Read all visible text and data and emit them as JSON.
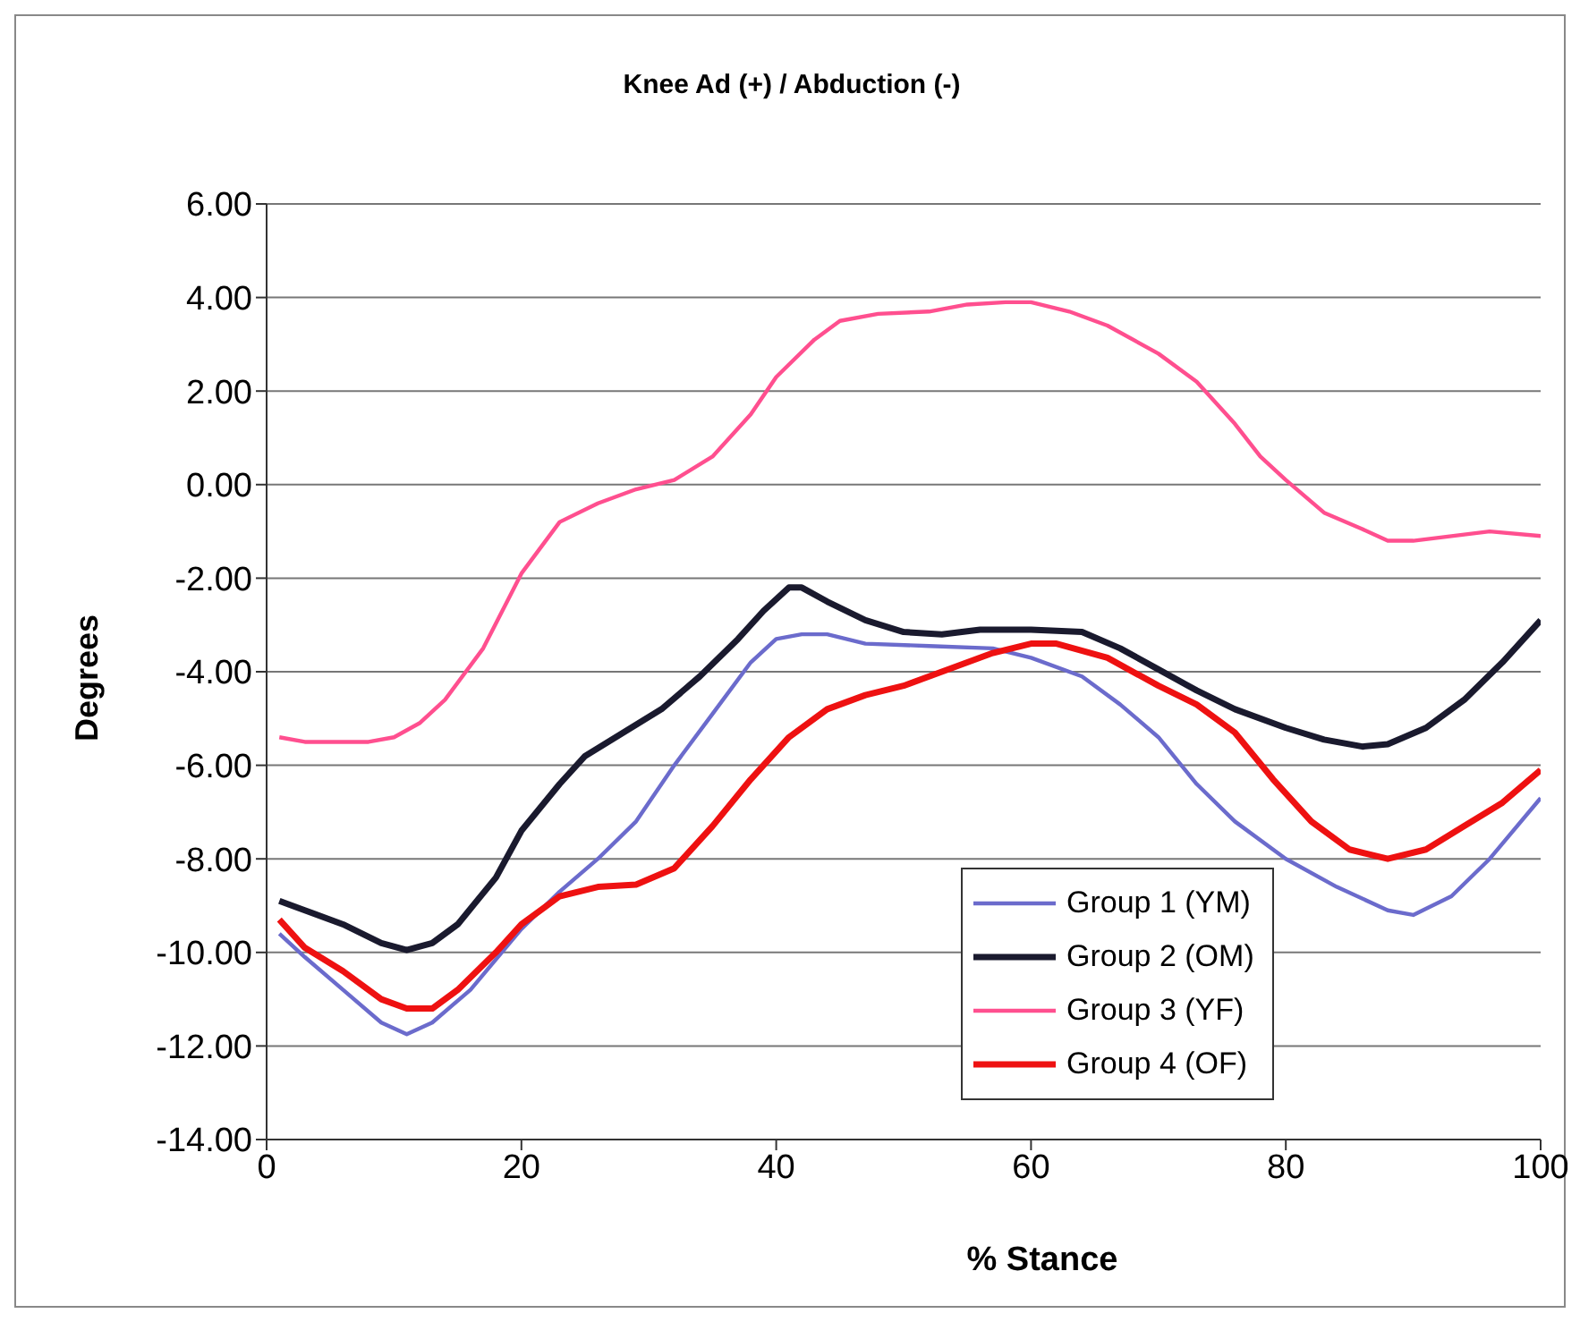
{
  "chart_data": {
    "type": "line",
    "title": "Knee Ad (+) / Abduction (-)",
    "xlabel": "% Stance",
    "ylabel": "Degrees",
    "xlim": [
      0,
      100
    ],
    "xticks": [
      0,
      20,
      40,
      60,
      80,
      100
    ],
    "ylim": [
      -14,
      6
    ],
    "yticks": [
      {
        "value": -14,
        "label": "-14.00"
      },
      {
        "value": -12,
        "label": "-12.00"
      },
      {
        "value": -10,
        "label": "-10.00"
      },
      {
        "value": -8,
        "label": "-8.00"
      },
      {
        "value": -6,
        "label": "-6.00"
      },
      {
        "value": -4,
        "label": "-4.00"
      },
      {
        "value": -2,
        "label": "-2.00"
      },
      {
        "value": 0,
        "label": "0.00"
      },
      {
        "value": 2,
        "label": "2.00"
      },
      {
        "value": 4,
        "label": "4.00"
      },
      {
        "value": 6,
        "label": "6.00"
      }
    ],
    "grid": "y",
    "legend": "bottom right",
    "marker": "none",
    "line_style": "solid",
    "series": [
      {
        "name": "Group 1 (YM)",
        "color": "#6b6bcc",
        "x": [
          1,
          3,
          6,
          9,
          11,
          13,
          16,
          20,
          23,
          26,
          29,
          32,
          35,
          38,
          40,
          42,
          44,
          47,
          52,
          57,
          60,
          64,
          67,
          70,
          73,
          76,
          80,
          84,
          88,
          90,
          93,
          96,
          100
        ],
        "values": [
          -9.6,
          -10.1,
          -10.8,
          -11.5,
          -11.75,
          -11.5,
          -10.8,
          -9.5,
          -8.7,
          -8.0,
          -7.2,
          -6.0,
          -4.9,
          -3.8,
          -3.3,
          -3.2,
          -3.2,
          -3.4,
          -3.45,
          -3.5,
          -3.7,
          -4.1,
          -4.7,
          -5.4,
          -6.4,
          -7.2,
          -8.0,
          -8.6,
          -9.1,
          -9.2,
          -8.8,
          -8.0,
          -6.7
        ]
      },
      {
        "name": "Group 2 (OM)",
        "color": "#1a1a2e",
        "x": [
          1,
          3,
          6,
          9,
          11,
          13,
          15,
          18,
          20,
          23,
          25,
          28,
          31,
          34,
          37,
          39,
          41,
          42,
          44,
          47,
          50,
          53,
          56,
          60,
          64,
          67,
          70,
          73,
          76,
          80,
          83,
          86,
          88,
          91,
          94,
          97,
          100
        ],
        "values": [
          -8.9,
          -9.1,
          -9.4,
          -9.8,
          -9.95,
          -9.8,
          -9.4,
          -8.4,
          -7.4,
          -6.4,
          -5.8,
          -5.3,
          -4.8,
          -4.1,
          -3.3,
          -2.7,
          -2.2,
          -2.2,
          -2.5,
          -2.9,
          -3.15,
          -3.2,
          -3.1,
          -3.1,
          -3.15,
          -3.5,
          -3.95,
          -4.4,
          -4.8,
          -5.2,
          -5.45,
          -5.6,
          -5.55,
          -5.2,
          -4.6,
          -3.8,
          -2.9
        ]
      },
      {
        "name": "Group 3 (YF)",
        "color": "#ff4f8f",
        "x": [
          1,
          3,
          8,
          10,
          12,
          14,
          17,
          20,
          23,
          26,
          29,
          32,
          35,
          38,
          40,
          43,
          45,
          48,
          52,
          55,
          58,
          60,
          63,
          66,
          70,
          73,
          76,
          78,
          80,
          83,
          86,
          88,
          90,
          93,
          96,
          100
        ],
        "values": [
          -5.4,
          -5.5,
          -5.5,
          -5.4,
          -5.1,
          -4.6,
          -3.5,
          -1.9,
          -0.8,
          -0.4,
          -0.1,
          0.1,
          0.6,
          1.5,
          2.3,
          3.1,
          3.5,
          3.65,
          3.7,
          3.85,
          3.9,
          3.9,
          3.7,
          3.4,
          2.8,
          2.2,
          1.3,
          0.6,
          0.1,
          -0.6,
          -0.95,
          -1.2,
          -1.2,
          -1.1,
          -1.0,
          -1.1
        ]
      },
      {
        "name": "Group 4 (OF)",
        "color": "#ee1111",
        "x": [
          1,
          3,
          6,
          9,
          11,
          13,
          15,
          18,
          20,
          23,
          26,
          29,
          32,
          35,
          38,
          41,
          44,
          47,
          50,
          54,
          57,
          60,
          62,
          66,
          70,
          73,
          76,
          79,
          82,
          85,
          88,
          91,
          94,
          97,
          100
        ],
        "values": [
          -9.3,
          -9.9,
          -10.4,
          -11.0,
          -11.2,
          -11.2,
          -10.8,
          -10.0,
          -9.4,
          -8.8,
          -8.6,
          -8.55,
          -8.2,
          -7.3,
          -6.3,
          -5.4,
          -4.8,
          -4.5,
          -4.3,
          -3.9,
          -3.6,
          -3.4,
          -3.4,
          -3.7,
          -4.3,
          -4.7,
          -5.3,
          -6.3,
          -7.2,
          -7.8,
          -8.0,
          -7.8,
          -7.3,
          -6.8,
          -6.1
        ]
      }
    ]
  }
}
